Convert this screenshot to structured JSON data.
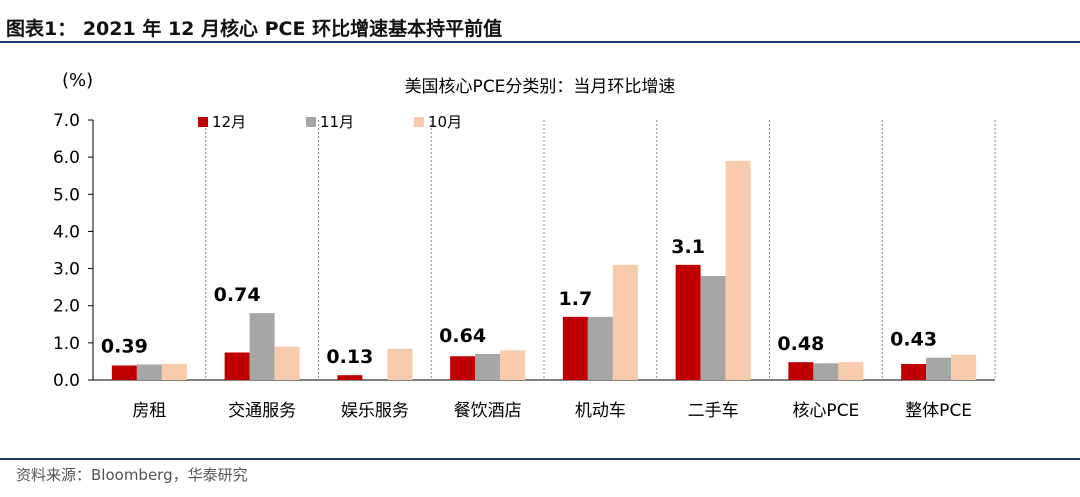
{
  "figure": {
    "title": "图表1：  2021 年 12 月核心 PCE 环比增速基本持平前值",
    "source": "资料来源：Bloomberg，华泰研究"
  },
  "colors": {
    "series_12": "#c00000",
    "series_11": "#a6a6a6",
    "series_10": "#f8cbad",
    "rule": "#1f3a6b"
  },
  "chart_data": {
    "type": "bar",
    "title": "美国核心PCE分类别：当月环比增速",
    "unit_label": "(%)",
    "categories": [
      "房租",
      "交通服务",
      "娱乐服务",
      "餐饮酒店",
      "机动车",
      "二手车",
      "核心PCE",
      "整体PCE"
    ],
    "series": [
      {
        "name": "12月",
        "values": [
          0.39,
          0.74,
          0.13,
          0.64,
          1.7,
          3.1,
          0.48,
          0.43
        ]
      },
      {
        "name": "11月",
        "values": [
          0.42,
          1.8,
          0.0,
          0.7,
          1.7,
          2.8,
          0.45,
          0.6
        ]
      },
      {
        "name": "10月",
        "values": [
          0.43,
          0.9,
          0.84,
          0.8,
          3.1,
          5.9,
          0.48,
          0.68
        ]
      }
    ],
    "data_labels": [
      "0.39",
      "0.74",
      "0.13",
      "0.64",
      "1.7",
      "3.1",
      "0.48",
      "0.43"
    ],
    "y_ticks": [
      "0.0",
      "1.0",
      "2.0",
      "3.0",
      "4.0",
      "5.0",
      "6.0",
      "7.0"
    ],
    "ylim": [
      0,
      7
    ],
    "legend_position": "top-left",
    "grid": "vertical dashed category separators"
  }
}
